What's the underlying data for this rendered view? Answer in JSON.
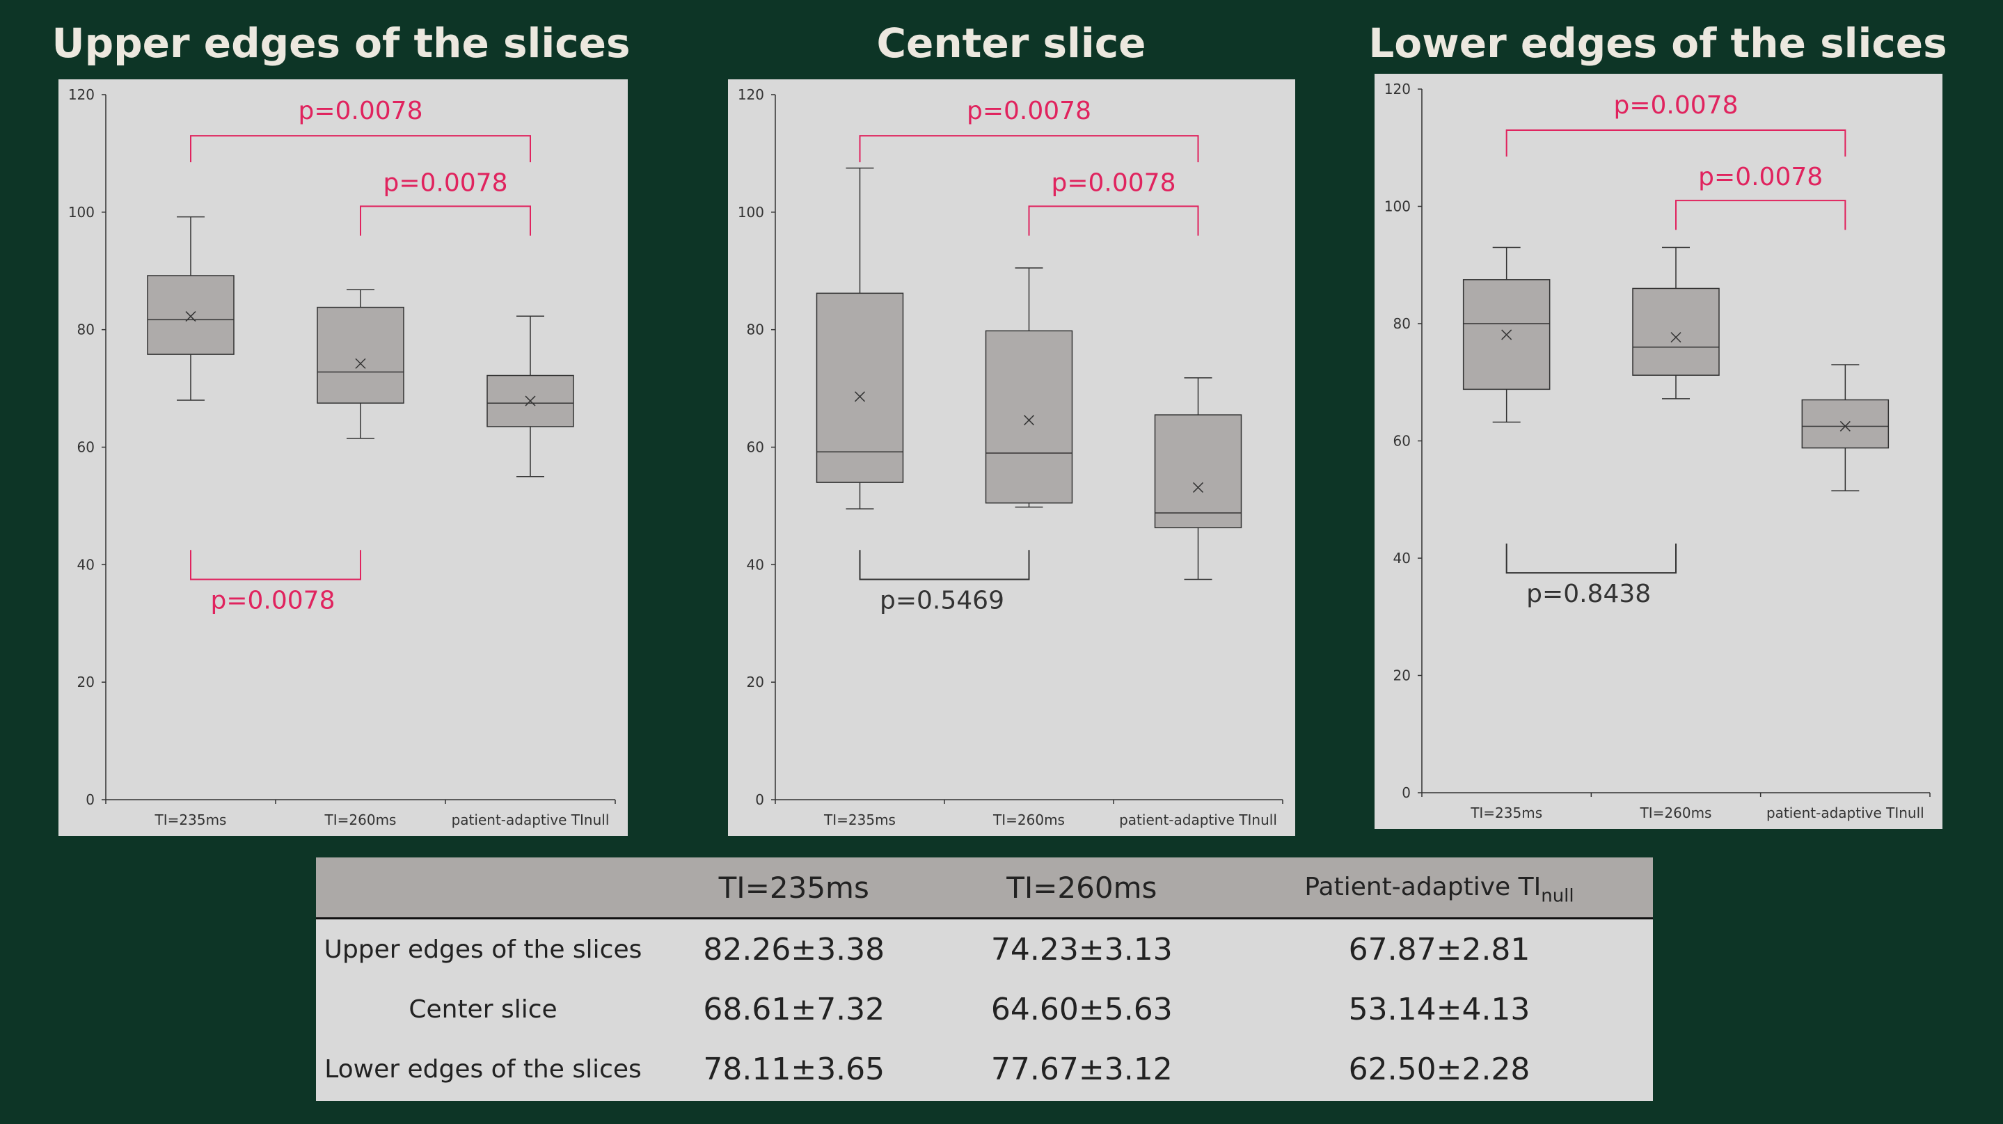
{
  "panels": [
    {
      "title": "Upper edges of the slices"
    },
    {
      "title": "Center slice"
    },
    {
      "title": "Lower edges of the slices"
    }
  ],
  "chart_data": [
    {
      "type": "box",
      "title": "Upper edges of the slices",
      "categories": [
        "TI=235ms",
        "TI=260ms",
        "patient-adaptive TInull"
      ],
      "ylim": [
        0,
        120
      ],
      "yticks": [
        0,
        20,
        40,
        60,
        80,
        100,
        120
      ],
      "boxes": [
        {
          "min": 68,
          "q1": 75.8,
          "median": 81.7,
          "q3": 89.2,
          "max": 99.2,
          "mean": 82.26
        },
        {
          "min": 61.5,
          "q1": 67.5,
          "median": 72.8,
          "q3": 83.8,
          "max": 86.8,
          "mean": 74.23
        },
        {
          "min": 55,
          "q1": 63.5,
          "median": 67.5,
          "q3": 72.2,
          "max": 82.3,
          "mean": 67.87
        }
      ],
      "annotations": [
        {
          "from": 0,
          "to": 2,
          "text": "p=0.0078",
          "significant": true,
          "position": "top-outer"
        },
        {
          "from": 1,
          "to": 2,
          "text": "p=0.0078",
          "significant": true,
          "position": "top-inner"
        },
        {
          "from": 0,
          "to": 1,
          "text": "p=0.0078",
          "significant": true,
          "position": "bottom"
        }
      ]
    },
    {
      "type": "box",
      "title": "Center slice",
      "categories": [
        "TI=235ms",
        "TI=260ms",
        "patient-adaptive TInull"
      ],
      "ylim": [
        0,
        120
      ],
      "yticks": [
        0,
        20,
        40,
        60,
        80,
        100,
        120
      ],
      "boxes": [
        {
          "min": 49.5,
          "q1": 54,
          "median": 59.2,
          "q3": 86.2,
          "max": 107.5,
          "mean": 68.61
        },
        {
          "min": 49.8,
          "q1": 50.5,
          "median": 59,
          "q3": 79.8,
          "max": 90.5,
          "mean": 64.6
        },
        {
          "min": 37.5,
          "q1": 46.3,
          "median": 48.8,
          "q3": 65.5,
          "max": 71.8,
          "mean": 53.14
        }
      ],
      "annotations": [
        {
          "from": 0,
          "to": 2,
          "text": "p=0.0078",
          "significant": true,
          "position": "top-outer"
        },
        {
          "from": 1,
          "to": 2,
          "text": "p=0.0078",
          "significant": true,
          "position": "top-inner"
        },
        {
          "from": 0,
          "to": 1,
          "text": "p=0.5469",
          "significant": false,
          "position": "bottom"
        }
      ]
    },
    {
      "type": "box",
      "title": "Lower edges of the slices",
      "categories": [
        "TI=235ms",
        "TI=260ms",
        "patient-adaptive TInull"
      ],
      "ylim": [
        0,
        120
      ],
      "yticks": [
        0,
        20,
        40,
        60,
        80,
        100,
        120
      ],
      "boxes": [
        {
          "min": 63.2,
          "q1": 68.8,
          "median": 80,
          "q3": 87.5,
          "max": 93,
          "mean": 78.11
        },
        {
          "min": 67.2,
          "q1": 71.2,
          "median": 76,
          "q3": 86,
          "max": 93,
          "mean": 77.67
        },
        {
          "min": 51.5,
          "q1": 58.8,
          "median": 62.5,
          "q3": 67,
          "max": 73,
          "mean": 62.5
        }
      ],
      "annotations": [
        {
          "from": 0,
          "to": 2,
          "text": "p=0.0078",
          "significant": true,
          "position": "top-outer"
        },
        {
          "from": 1,
          "to": 2,
          "text": "p=0.0078",
          "significant": true,
          "position": "top-inner"
        },
        {
          "from": 0,
          "to": 1,
          "text": "p=0.8438",
          "significant": false,
          "position": "bottom"
        }
      ]
    }
  ],
  "table": {
    "headers": [
      "",
      "TI=235ms",
      "TI=260ms",
      "Patient-adaptive TI",
      "null"
    ],
    "rows": [
      {
        "label": "Upper edges of the slices",
        "values": [
          "82.26±3.38",
          "74.23±3.13",
          "67.87±2.81"
        ]
      },
      {
        "label": "Center slice",
        "values": [
          "68.61±7.32",
          "64.60±5.63",
          "53.14±4.13"
        ]
      },
      {
        "label": "Lower edges of the slices",
        "values": [
          "78.11±3.65",
          "77.67±3.12",
          "62.50±2.28"
        ]
      }
    ]
  },
  "colors": {
    "background": "#0d3526",
    "panel": "#d9d9d9",
    "box_fill": "#aeabaa",
    "significant": "#e0235e",
    "line": "#333333"
  }
}
